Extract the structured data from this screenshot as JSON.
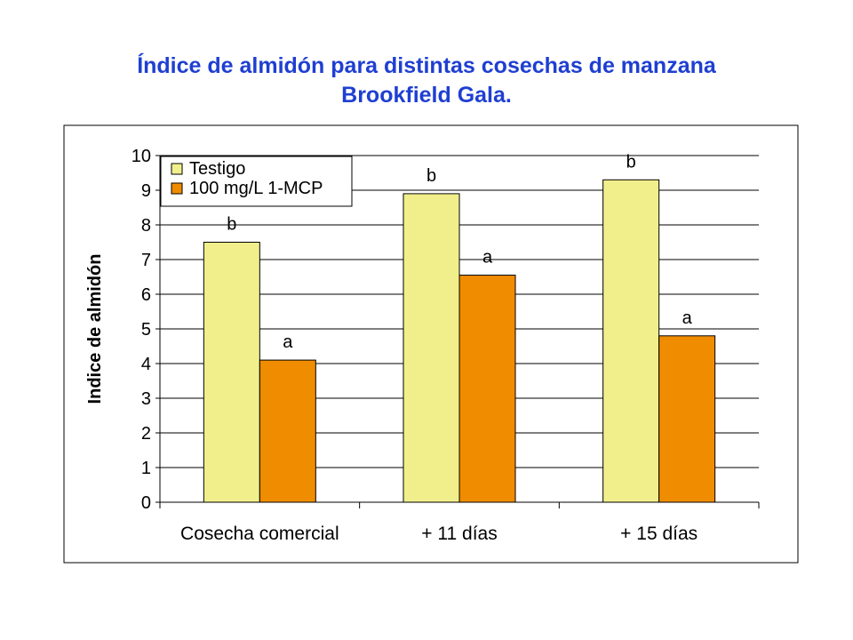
{
  "title": {
    "line1": "Índice de almidón para distintas cosechas de manzana",
    "line2": "Brookfield Gala."
  },
  "colors": {
    "testigo": "#f0ef8c",
    "mcp": "#f08c00",
    "title": "#1f3fd1",
    "plot_background": "#ffffff"
  },
  "chart_data": {
    "type": "bar",
    "title": "Índice de almidón para distintas cosechas de manzana Brookfield Gala.",
    "xlabel": "",
    "ylabel": "Indice de almidón",
    "ylim": [
      0,
      10
    ],
    "yticks": [
      "0",
      "1",
      "2",
      "3",
      "4",
      "5",
      "6",
      "7",
      "8",
      "9",
      "10"
    ],
    "grid": true,
    "legend_position": "top-left",
    "categories": [
      "Cosecha comercial",
      "+ 11 días",
      "+ 15 días"
    ],
    "series": [
      {
        "name": "Testigo",
        "values": [
          7.5,
          8.9,
          9.3
        ],
        "labels": [
          "b",
          "b",
          "b"
        ]
      },
      {
        "name": "100 mg/L 1-MCP",
        "values": [
          4.1,
          6.55,
          4.8
        ],
        "labels": [
          "a",
          "a",
          "a"
        ]
      }
    ]
  }
}
